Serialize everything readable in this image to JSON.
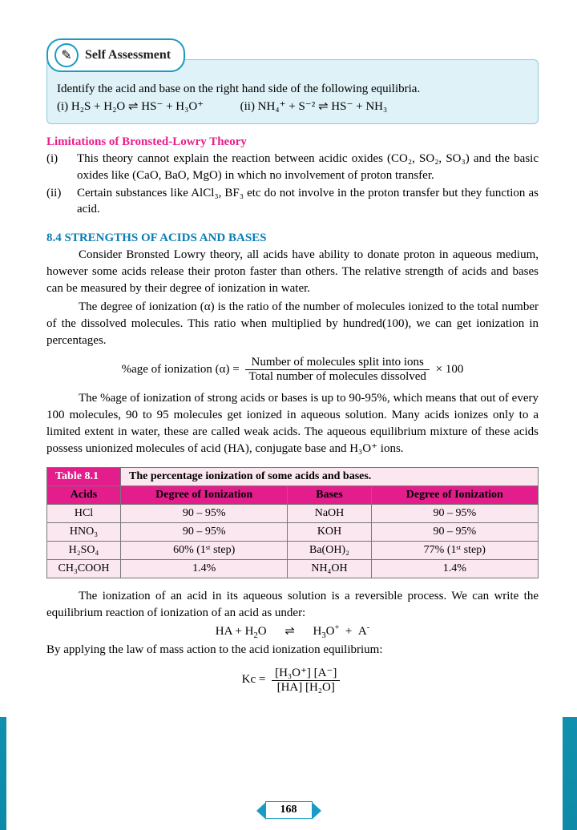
{
  "selfAssessment": {
    "title": "Self Assessment",
    "prompt": "Identify the acid and base on the right hand side of the following equilibria.",
    "eq1": "(i) H₂S + H₂O  ⇌ HS⁻ +  H₃O⁺",
    "eq2": "(ii) NH₄⁺ + S⁻²  ⇌ HS⁻ +  NH₃"
  },
  "limitations": {
    "heading": "Limitations of Bronsted-Lowry Theory",
    "items": [
      {
        "n": "(i)",
        "t": "This theory cannot explain the reaction between acidic oxides (CO₂, SO₂, SO₃) and the basic oxides like (CaO, BaO, MgO) in which no involvement of proton transfer."
      },
      {
        "n": "(ii)",
        "t": "Certain substances like AlCl₃, BF₃ etc do not involve in the proton transfer but they function as acid."
      }
    ]
  },
  "section": {
    "heading": "8.4 STRENGTHS OF ACIDS AND BASES",
    "p1": "Consider Bronsted Lowry theory, all acids have ability to donate proton in aqueous medium, however some acids release their proton faster than others. The relative strength of acids and bases can be measured by their degree of ionization in water.",
    "p2": "The degree of ionization (α) is the ratio of the number of molecules ionized to the total number of the dissolved molecules. This ratio when multiplied by hundred(100), we can get ionization in percentages.",
    "formula": {
      "lhs": "%age of ionization (α) = ",
      "num": "Number of molecules split into ions",
      "den": "Total number of molecules dissolved",
      "tail": " × 100"
    },
    "p3": "The %age of ionization of strong acids or bases is up to 90-95%, which means that out of every 100 molecules, 90 to 95 molecules get ionized in aqueous solution. Many acids ionizes only to a limited extent in water, these are called weak acids. The aqueous equilibrium mixture of these acids possess unionized molecules of acid (HA), conjugate base and H₃O⁺ ions."
  },
  "table": {
    "label": "Table 8.1",
    "caption": "The percentage ionization of some acids and bases.",
    "headers": [
      "Acids",
      "Degree of Ionization",
      "Bases",
      "Degree of Ionization"
    ],
    "rows": [
      [
        "HCl",
        "90 – 95%",
        "NaOH",
        "90 – 95%"
      ],
      [
        "HNO₃",
        "90 – 95%",
        "KOH",
        "90 – 95%"
      ],
      [
        "H₂SO₄",
        "60% (1ˢᵗ step)",
        "Ba(OH)₂",
        "77% (1ˢᵗ step)"
      ],
      [
        "CH₃COOH",
        "1.4%",
        "NH₄OH",
        "1.4%"
      ]
    ],
    "colors": {
      "headerBg": "#e31e8c",
      "bodyBg": "#fbe7ef",
      "border": "#777"
    }
  },
  "closing": {
    "p1": "The ionization of an acid in its aqueous solution is a reversible process. We can write the equilibrium reaction of ionization of an acid as under:",
    "eq": "HA + H₂O          ⇌          H₃O⁺  +  A⁻",
    "p2": "By applying the law of mass action to the acid ionization equilibrium:",
    "kc": {
      "lhs": "Kc = ",
      "num": "[H₃O⁺] [A⁻]",
      "den": "[HA] [H₂O]"
    }
  },
  "pageNumber": "168"
}
